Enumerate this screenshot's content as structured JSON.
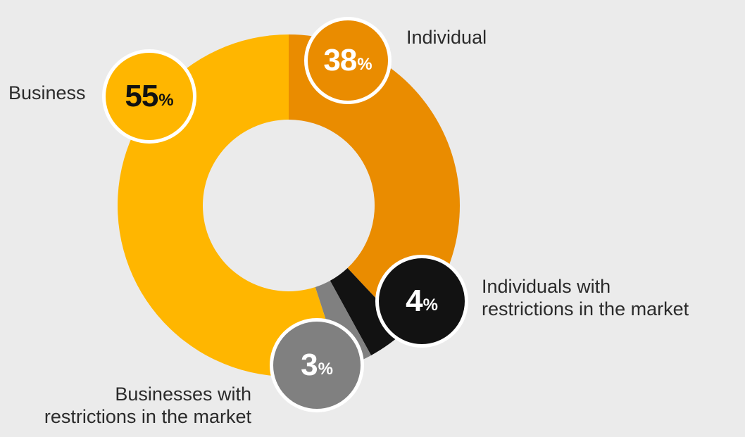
{
  "chart_data": {
    "type": "pie",
    "donut": true,
    "title": "",
    "slices": [
      {
        "key": "individual",
        "label": "Individual",
        "value": 38,
        "value_text": "38",
        "unit": "%",
        "color": "#ea8c00",
        "text_color": "#ffffff"
      },
      {
        "key": "individual_restricted",
        "label": "Individuals with\nrestrictions in the market",
        "value": 4,
        "value_text": "4",
        "unit": "%",
        "color": "#121212",
        "text_color": "#ffffff"
      },
      {
        "key": "business_restricted",
        "label": "Businesses with\nrestrictions in the market",
        "value": 3,
        "value_text": "3",
        "unit": "%",
        "color": "#808080",
        "text_color": "#ffffff"
      },
      {
        "key": "business",
        "label": "Business",
        "value": 55,
        "value_text": "55",
        "unit": "%",
        "color": "#ffb600",
        "text_color": "#111111"
      }
    ]
  }
}
